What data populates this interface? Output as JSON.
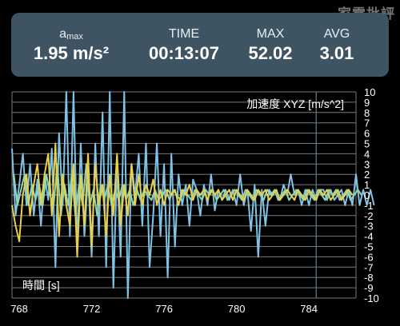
{
  "watermark": "家電批評",
  "stats": {
    "amax": {
      "label_main": "a",
      "label_sub": "max",
      "value": "1.95 m/s²"
    },
    "time": {
      "label": "TIME",
      "value": "00:13:07"
    },
    "max": {
      "label": "MAX",
      "value": "52.02"
    },
    "avg": {
      "label": "AVG",
      "value": "3.01"
    }
  },
  "chart_data": {
    "type": "line",
    "title": "加速度 XYZ [m/s^2]",
    "xlabel": "時間 [s]",
    "xlim": [
      767.6,
      786.6
    ],
    "ylim": [
      -10,
      10
    ],
    "x_ticks": [
      768,
      772,
      776,
      780,
      784
    ],
    "y_ticks": [
      10,
      9,
      8,
      7,
      6,
      5,
      4,
      3,
      2,
      1,
      0,
      -1,
      -2,
      -3,
      -4,
      -5,
      -6,
      -7,
      -8,
      -9,
      -10
    ],
    "grid": true,
    "cursor_x": 784.4,
    "series": [
      {
        "color": "#7fc3e6",
        "x0": 767.6,
        "dx": 0.2,
        "values": [
          4.5,
          -2,
          1,
          4,
          -1,
          3,
          -2,
          1.5,
          -3,
          2,
          -0.5,
          4.5,
          -7,
          6,
          -1,
          10,
          -4,
          10,
          -5,
          5,
          -4,
          2,
          -6,
          5,
          -4,
          8,
          -7,
          10,
          -9,
          3,
          -6,
          10,
          -10,
          3,
          0,
          4,
          -3,
          5,
          -7,
          -2,
          5,
          -4,
          3,
          -8,
          4,
          -5,
          2,
          -1,
          1,
          -3,
          1.5,
          0.5,
          -2,
          1,
          -1,
          2,
          -1.5,
          0.5,
          -0.5,
          0.5,
          -0.5,
          0.5,
          -1,
          2,
          -1,
          0.5,
          -3.5,
          1,
          -6,
          0.5,
          -3,
          0.5,
          0,
          0.5,
          -0.5,
          1,
          0,
          2,
          0,
          0.5,
          -1,
          0.5,
          -1,
          0.5,
          -0.5,
          0.5,
          0.5,
          -0.5,
          0.5,
          -0.5,
          0,
          0.5,
          -1,
          0.5,
          -1,
          2,
          -1,
          0.5,
          -1,
          0.5,
          -1
        ]
      },
      {
        "color": "#8fd7b0",
        "x0": 767.7,
        "dx": 0.2,
        "values": [
          2,
          -1,
          0.5,
          2,
          -1,
          1,
          -0.5,
          1,
          -1,
          2,
          0,
          -1,
          3,
          -2,
          1,
          -1,
          2,
          -2,
          1,
          -1,
          3,
          -1,
          0.5,
          -2,
          1,
          -0.5,
          1,
          -1,
          0.5,
          -0.5,
          1,
          -0.5,
          0.5,
          -1,
          0.5,
          -0.5,
          0.5,
          0,
          -0.5,
          0.5,
          -0.5,
          0,
          0.5,
          -0.5,
          0.5,
          0,
          -0.5,
          0.5,
          0,
          -0.5,
          0.5,
          0,
          -0.5,
          0.5,
          0,
          0.5,
          -0.5,
          0,
          0.5,
          -0.5,
          0,
          0.5,
          0,
          -0.5,
          0.5,
          0,
          -0.5,
          0.5,
          0,
          -0.5,
          0.5,
          0,
          0.5,
          -0.5,
          0,
          0.5,
          -0.5,
          0,
          0.5,
          0,
          -0.5,
          0.5,
          0,
          -0.5,
          0.5,
          0,
          -0.5,
          0.5,
          0,
          0.5,
          -0.5,
          0,
          0.5,
          -0.5,
          0,
          0.5,
          0
        ]
      },
      {
        "color": "#e8d04a",
        "x0": 767.6,
        "dx": 0.2,
        "values": [
          -1,
          -3,
          -4.5,
          0,
          2,
          -2,
          1,
          3,
          -1,
          2,
          4,
          -2,
          5,
          -4,
          2,
          -1,
          -3,
          3,
          -6,
          2,
          -3,
          4,
          -5,
          3,
          -1,
          1,
          -4,
          2,
          -2,
          4,
          -3,
          1,
          -2,
          3,
          -1,
          2,
          -1,
          1,
          0,
          1.5,
          -1,
          0.5,
          -1,
          0.5,
          0,
          0.5,
          -1,
          0.5,
          0,
          1,
          -0.5,
          0.5,
          0,
          0.5,
          -0.5,
          0.5,
          0,
          0.5,
          -0.5,
          0,
          0.5,
          -0.5,
          0.5,
          0,
          -0.5,
          0.5,
          0,
          -0.5,
          0.5,
          0,
          0.5,
          -0.5,
          0,
          0.5,
          -0.5,
          0,
          0.5,
          0,
          -0.5,
          0.5,
          0,
          -0.5,
          0.5,
          0,
          -0.5,
          0.5,
          0,
          0.5,
          -0.5,
          0,
          0.5,
          -0.5,
          0,
          0.5,
          0
        ]
      }
    ]
  }
}
